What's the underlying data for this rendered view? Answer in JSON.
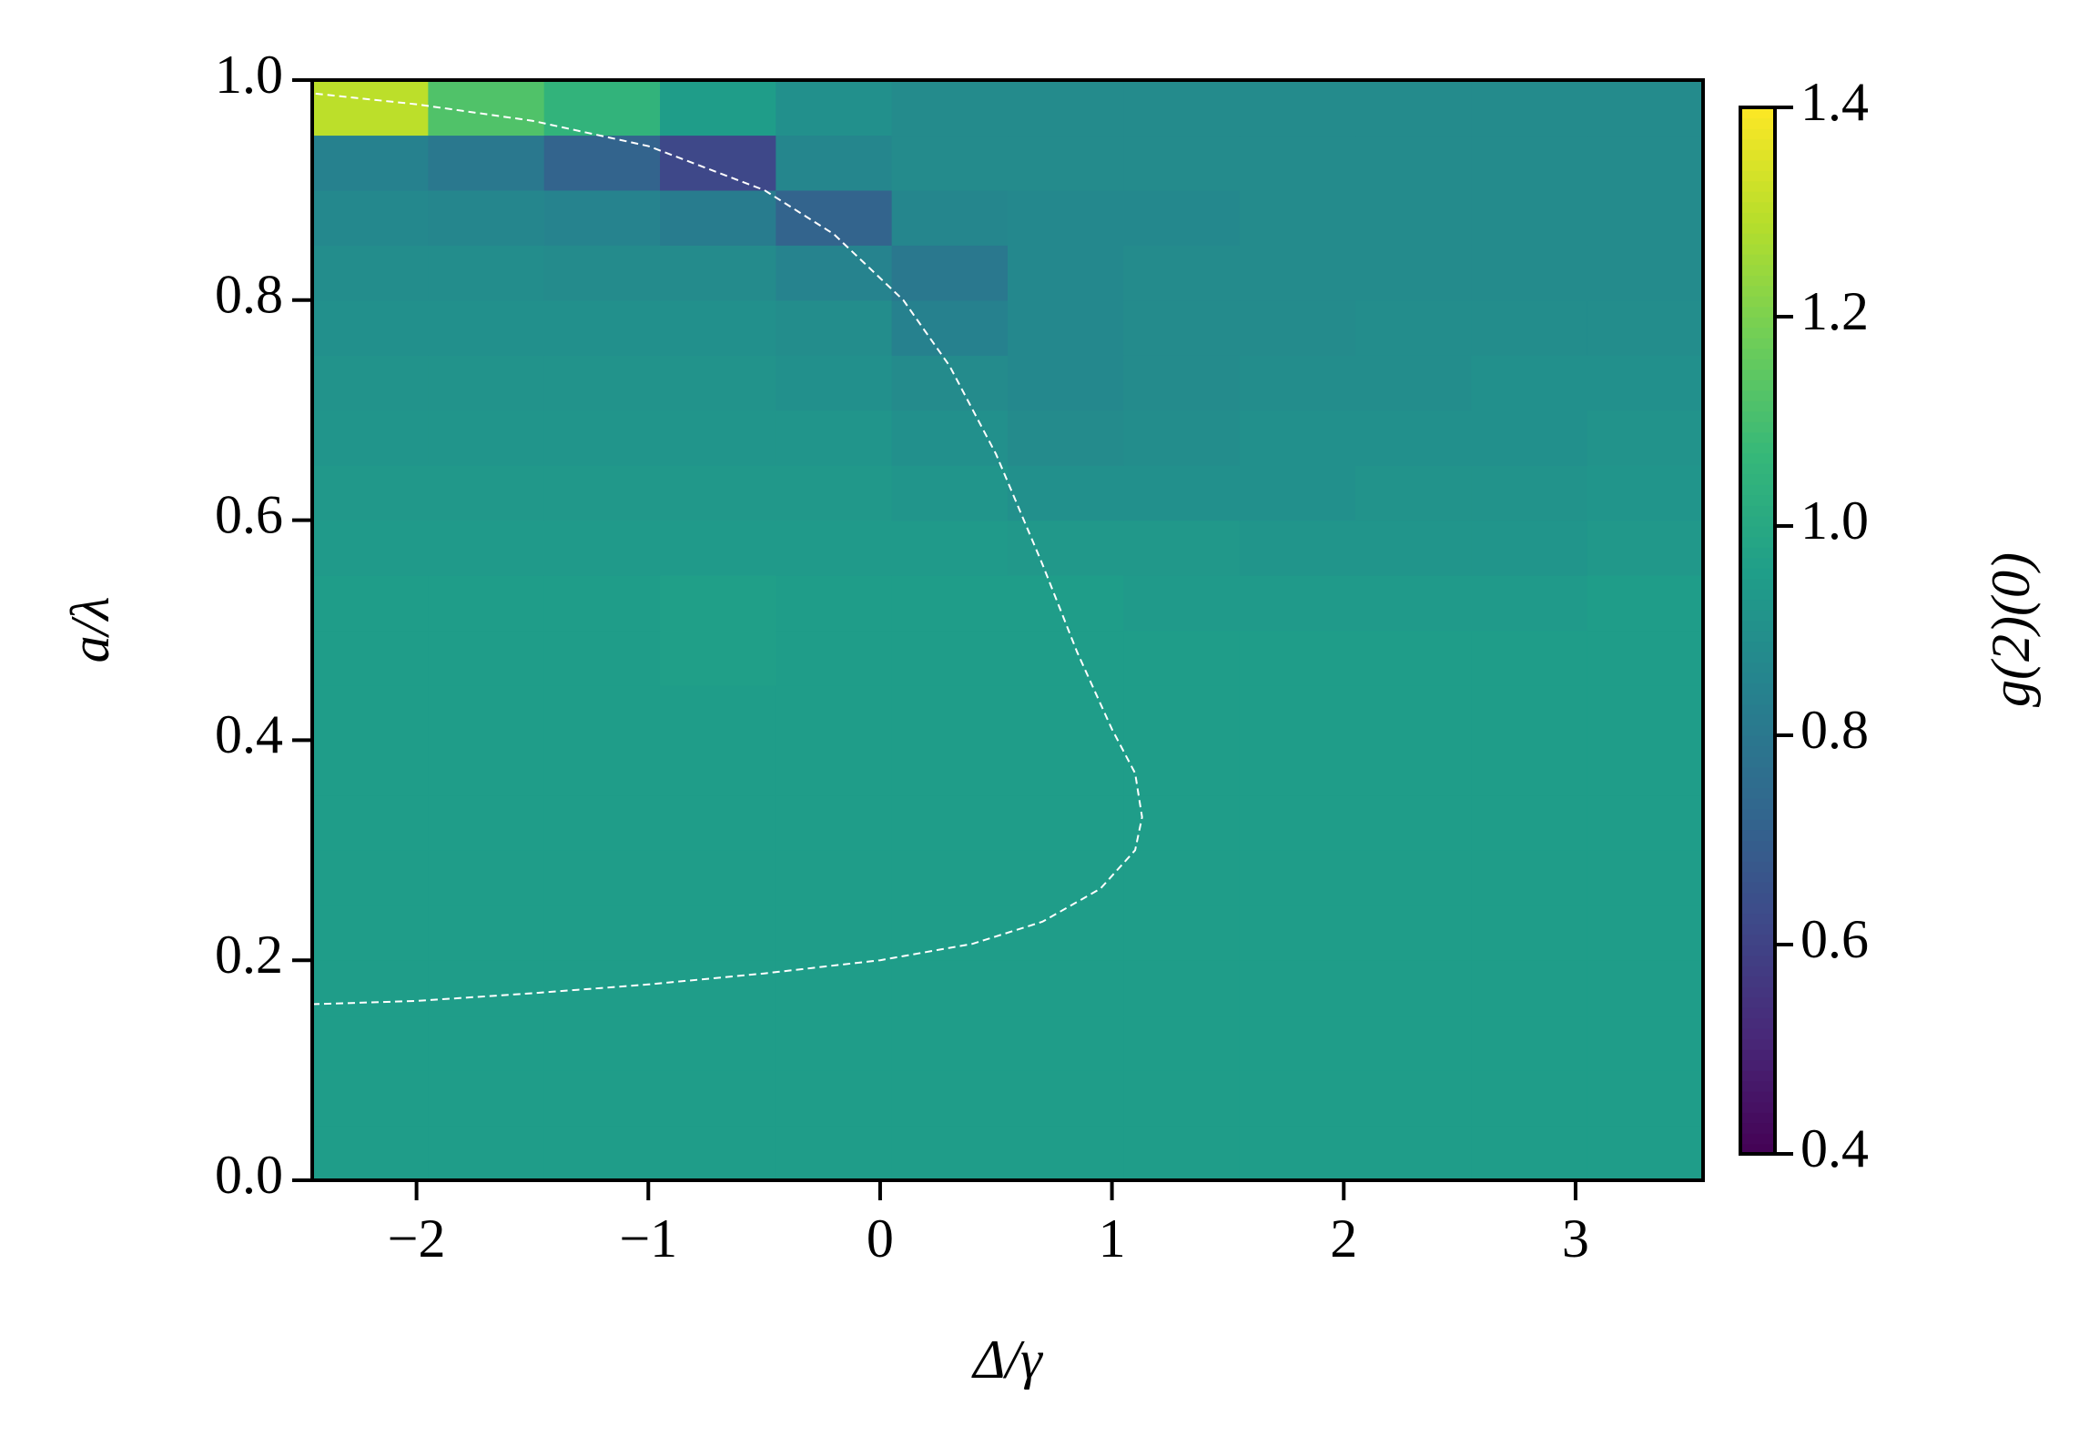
{
  "chart_data": {
    "type": "heatmap",
    "xlabel": "Δ/γ",
    "ylabel": "a/λ",
    "colorbar_label": "g(2)(0)",
    "colormap": "viridis",
    "xlim": [
      -2.45,
      3.55
    ],
    "ylim": [
      0,
      1
    ],
    "xticks": [
      {
        "value": -2,
        "label": "−2"
      },
      {
        "value": -1,
        "label": "−1"
      },
      0,
      1,
      2,
      3
    ],
    "yticks": [
      {
        "value": 0,
        "label": "0.0"
      },
      {
        "value": 0.2,
        "label": "0.2"
      },
      {
        "value": 0.4,
        "label": "0.4"
      },
      {
        "value": 0.6,
        "label": "0.6"
      },
      {
        "value": 0.8,
        "label": "0.8"
      },
      {
        "value": 1,
        "label": "1.0"
      }
    ],
    "clim": [
      0.4,
      1.4
    ],
    "cticks": [
      0.4,
      0.6,
      0.8,
      {
        "value": 1,
        "label": "1.0"
      },
      1.2,
      1.4
    ],
    "x": [
      -2.2,
      -1.7,
      -1.2,
      -0.7,
      -0.2,
      0.3,
      0.8,
      1.3,
      1.8,
      2.3,
      2.8,
      3.3
    ],
    "y": [
      0.025,
      0.075,
      0.125,
      0.175,
      0.225,
      0.275,
      0.325,
      0.375,
      0.425,
      0.475,
      0.525,
      0.575,
      0.625,
      0.675,
      0.725,
      0.775,
      0.825,
      0.875,
      0.925,
      0.975
    ],
    "z": [
      [
        0.95,
        0.95,
        0.95,
        0.95,
        0.95,
        0.95,
        0.95,
        0.95,
        0.95,
        0.95,
        0.95,
        0.95
      ],
      [
        0.95,
        0.95,
        0.95,
        0.95,
        0.95,
        0.95,
        0.95,
        0.95,
        0.95,
        0.95,
        0.95,
        0.95
      ],
      [
        0.95,
        0.95,
        0.95,
        0.95,
        0.95,
        0.95,
        0.95,
        0.95,
        0.95,
        0.95,
        0.95,
        0.95
      ],
      [
        0.95,
        0.95,
        0.95,
        0.95,
        0.95,
        0.95,
        0.95,
        0.95,
        0.95,
        0.95,
        0.95,
        0.95
      ],
      [
        0.95,
        0.95,
        0.95,
        0.95,
        0.95,
        0.95,
        0.95,
        0.95,
        0.95,
        0.95,
        0.95,
        0.95
      ],
      [
        0.95,
        0.95,
        0.95,
        0.95,
        0.95,
        0.95,
        0.95,
        0.95,
        0.95,
        0.95,
        0.95,
        0.95
      ],
      [
        0.95,
        0.95,
        0.95,
        0.95,
        0.95,
        0.95,
        0.95,
        0.95,
        0.95,
        0.95,
        0.95,
        0.95
      ],
      [
        0.95,
        0.95,
        0.95,
        0.95,
        0.95,
        0.95,
        0.95,
        0.95,
        0.95,
        0.95,
        0.95,
        0.95
      ],
      [
        0.95,
        0.95,
        0.95,
        0.95,
        0.95,
        0.95,
        0.95,
        0.95,
        0.95,
        0.95,
        0.95,
        0.95
      ],
      [
        0.95,
        0.95,
        0.95,
        0.96,
        0.95,
        0.95,
        0.95,
        0.95,
        0.95,
        0.95,
        0.95,
        0.95
      ],
      [
        0.95,
        0.95,
        0.95,
        0.96,
        0.95,
        0.95,
        0.95,
        0.94,
        0.94,
        0.94,
        0.94,
        0.95
      ],
      [
        0.94,
        0.94,
        0.94,
        0.94,
        0.94,
        0.94,
        0.93,
        0.93,
        0.92,
        0.92,
        0.92,
        0.93
      ],
      [
        0.93,
        0.93,
        0.93,
        0.93,
        0.93,
        0.92,
        0.9,
        0.9,
        0.9,
        0.91,
        0.91,
        0.92
      ],
      [
        0.92,
        0.92,
        0.92,
        0.92,
        0.92,
        0.9,
        0.88,
        0.89,
        0.9,
        0.9,
        0.9,
        0.91
      ],
      [
        0.91,
        0.91,
        0.91,
        0.91,
        0.9,
        0.88,
        0.87,
        0.88,
        0.89,
        0.89,
        0.9,
        0.9
      ],
      [
        0.9,
        0.9,
        0.9,
        0.9,
        0.89,
        0.84,
        0.87,
        0.88,
        0.88,
        0.89,
        0.89,
        0.89
      ],
      [
        0.89,
        0.89,
        0.88,
        0.88,
        0.85,
        0.8,
        0.87,
        0.88,
        0.88,
        0.88,
        0.88,
        0.88
      ],
      [
        0.87,
        0.86,
        0.85,
        0.82,
        0.72,
        0.86,
        0.87,
        0.87,
        0.88,
        0.88,
        0.88,
        0.88
      ],
      [
        0.84,
        0.8,
        0.72,
        0.62,
        0.86,
        0.88,
        0.88,
        0.88,
        0.88,
        0.88,
        0.88,
        0.88
      ],
      [
        1.3,
        1.12,
        1.05,
        0.95,
        0.9,
        0.88,
        0.88,
        0.88,
        0.88,
        0.88,
        0.88,
        0.88
      ]
    ],
    "curve": {
      "color": "#ffffff",
      "x": [
        -2.45,
        -2,
        -1.5,
        -1,
        -0.5,
        0,
        0.4,
        0.7,
        0.95,
        1.1,
        1.13,
        1.1,
        1.0,
        0.85,
        0.7,
        0.5,
        0.3,
        0.1,
        -0.2,
        -0.5,
        -1,
        -1.5,
        -2,
        -2.45
      ],
      "y": [
        0.16,
        0.163,
        0.17,
        0.178,
        0.188,
        0.2,
        0.215,
        0.235,
        0.265,
        0.3,
        0.33,
        0.37,
        0.41,
        0.48,
        0.56,
        0.66,
        0.74,
        0.8,
        0.86,
        0.9,
        0.94,
        0.963,
        0.978,
        0.988
      ]
    }
  }
}
